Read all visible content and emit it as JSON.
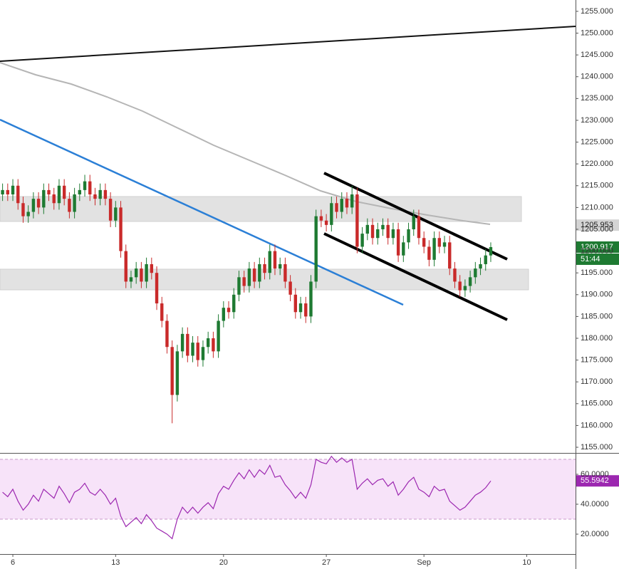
{
  "chart_data": {
    "type": "candlestick",
    "categories": [
      null,
      null,
      "6",
      null,
      null,
      null,
      null,
      null,
      null,
      null,
      null,
      null,
      null,
      null,
      null,
      null,
      null,
      null,
      null,
      null,
      null,
      null,
      "13",
      null,
      null,
      null,
      null,
      null,
      null,
      null,
      null,
      null,
      null,
      null,
      null,
      null,
      null,
      null,
      null,
      null,
      null,
      null,
      null,
      "20",
      null,
      null,
      null,
      null,
      null,
      null,
      null,
      null,
      null,
      null,
      null,
      null,
      null,
      null,
      null,
      null,
      null,
      null,
      null,
      "27",
      null,
      null,
      null,
      null,
      null,
      null,
      null,
      null,
      null,
      null,
      null,
      null,
      null,
      null,
      null,
      null,
      null,
      null,
      "Sep",
      null,
      null,
      null,
      null,
      null,
      null,
      null,
      null,
      null,
      null,
      null,
      null,
      null,
      null,
      null,
      null,
      null,
      null,
      null,
      "10",
      null,
      null,
      null,
      null,
      null,
      null,
      null,
      null,
      null
    ],
    "open": [
      1213,
      1214,
      1213,
      1215,
      1211,
      1208,
      1209,
      1212,
      1210,
      1214,
      1213,
      1211,
      1215,
      1212,
      1209,
      1213,
      1214,
      1216,
      1213,
      1212,
      1214,
      1212,
      1207,
      1210,
      1200,
      1193,
      1194,
      1196,
      1193,
      1197,
      1195,
      1188,
      1184,
      1178,
      1167,
      1177,
      1181,
      1176,
      1179,
      1175,
      1178,
      1180,
      1177,
      1184,
      1187,
      1186,
      1190,
      1194,
      1192,
      1196,
      1193,
      1197,
      1195,
      1200,
      1196,
      1197,
      1193,
      1190,
      1186,
      1188,
      1185,
      1193,
      1208,
      1207,
      1206,
      1211,
      1209,
      1212,
      1210,
      1213,
      1201,
      1204,
      1206,
      1203,
      1205,
      1206,
      1203,
      1205,
      1199,
      1202,
      1205,
      1208,
      1203,
      1201,
      1198,
      1203,
      1201,
      1202,
      1196,
      1193,
      1191,
      1192,
      1194,
      1196,
      1197,
      1199,
      null,
      null,
      null,
      null,
      null,
      null,
      null,
      null,
      null,
      null,
      null,
      null,
      null,
      null,
      null,
      null
    ],
    "high": [
      1215.5,
      1215.5,
      1216.5,
      1216.5,
      1212.5,
      1210.5,
      1213.5,
      1213.5,
      1215.5,
      1215.5,
      1214.5,
      1216.5,
      1216.5,
      1213.5,
      1214.5,
      1215.5,
      1217.5,
      1217.5,
      1214.5,
      1215.5,
      1215.5,
      1213.5,
      1211.5,
      1211.5,
      1201.5,
      1195.5,
      1197.5,
      1197.5,
      1198.5,
      1198.5,
      1196.5,
      1189.5,
      1185.5,
      1179.5,
      1178.5,
      1182.5,
      1182.5,
      1180.5,
      1180.5,
      1179.5,
      1181.5,
      1181.5,
      1185.5,
      1188.5,
      1188.5,
      1191.5,
      1195.5,
      1195.5,
      1197.5,
      1197.5,
      1198.5,
      1198.5,
      1201.5,
      1201.5,
      1198.5,
      1198.5,
      1194.5,
      1191.5,
      1189.5,
      1189.5,
      1194.5,
      1209.5,
      1209.5,
      1208.5,
      1212.5,
      1212.5,
      1213.5,
      1213.5,
      1215,
      1214.5,
      1205.5,
      1207.5,
      1207.5,
      1206.5,
      1207.5,
      1207.5,
      1206.5,
      1206.5,
      1203.5,
      1206.5,
      1209.5,
      1209.5,
      1204.5,
      1202.5,
      1204.5,
      1204.5,
      1203.5,
      1203.5,
      1197.5,
      1194.5,
      1193.5,
      1195.5,
      1197.5,
      1198.5,
      1200.5,
      1202,
      null,
      null,
      null,
      null,
      null,
      null,
      null,
      null,
      null,
      null,
      null,
      null,
      null,
      null,
      null,
      null
    ],
    "low": [
      1211.5,
      1211.5,
      1211.5,
      1209.5,
      1206.5,
      1206.5,
      1207.5,
      1208.5,
      1208.5,
      1211.5,
      1209.5,
      1209.5,
      1210.5,
      1207.5,
      1207.5,
      1211.5,
      1212.5,
      1211.5,
      1210.5,
      1210.5,
      1210.5,
      1205.5,
      1205.5,
      1198.5,
      1191.5,
      1191.5,
      1192.5,
      1191.5,
      1191.5,
      1193.5,
      1186.5,
      1182.5,
      1176.5,
      1160.5,
      1165.5,
      1175.5,
      1174.5,
      1174.5,
      1173.5,
      1173.5,
      1176.5,
      1175.5,
      1175.5,
      1182.5,
      1184.5,
      1184.5,
      1188.5,
      1190.5,
      1190.5,
      1191.5,
      1191.5,
      1193.5,
      1193.5,
      1194.5,
      1194.5,
      1191.5,
      1188.5,
      1184.5,
      1184.5,
      1183.5,
      1183.5,
      1191.5,
      1205.5,
      1204.5,
      1204.5,
      1207.5,
      1207.5,
      1208.5,
      1208.5,
      1199.5,
      1199.5,
      1202.5,
      1201.5,
      1201.5,
      1203.5,
      1201.5,
      1201.5,
      1197.5,
      1197.5,
      1200.5,
      1203.5,
      1201.5,
      1199.5,
      1196.5,
      1196.5,
      1199.5,
      1199.5,
      1194.5,
      1191.5,
      1189.5,
      1189.5,
      1190.5,
      1192.5,
      1194.5,
      1195.5,
      1197.5,
      null,
      null,
      null,
      null,
      null,
      null,
      null,
      null,
      null,
      null,
      null,
      null,
      null,
      null,
      null,
      null
    ],
    "close": [
      1214,
      1213,
      1215,
      1211,
      1208,
      1209,
      1212,
      1210,
      1214,
      1213,
      1211,
      1215,
      1212,
      1209,
      1213,
      1214,
      1216,
      1213,
      1212,
      1214,
      1212,
      1207,
      1210,
      1200,
      1193,
      1194,
      1196,
      1193,
      1197,
      1195,
      1188,
      1184,
      1178,
      1167,
      1177,
      1181,
      1176,
      1179,
      1175,
      1178,
      1180,
      1177,
      1184,
      1187,
      1186,
      1190,
      1194,
      1192,
      1196,
      1193,
      1197,
      1195,
      1200,
      1196,
      1197,
      1193,
      1190,
      1186,
      1188,
      1185,
      1193,
      1208,
      1207,
      1206,
      1211,
      1209,
      1212,
      1210,
      1213,
      1201,
      1204,
      1206,
      1203,
      1205,
      1206,
      1203,
      1205,
      1199,
      1202,
      1205,
      1208,
      1203,
      1201,
      1198,
      1203,
      1201,
      1202,
      1196,
      1193,
      1191,
      1192,
      1194,
      1196,
      1197,
      1199,
      1200.917,
      null,
      null,
      null,
      null,
      null,
      null,
      null,
      null,
      null,
      null,
      null,
      null,
      null,
      null,
      null,
      null
    ],
    "up_color": "#1e7a32",
    "down_color": "#c92a2a",
    "ylim": [
      1153.7,
      1257.6
    ],
    "yticks": [
      {
        "value": 1155,
        "label": "1155.000"
      },
      {
        "value": 1160,
        "label": "1160.000"
      },
      {
        "value": 1165,
        "label": "1165.000"
      },
      {
        "value": 1170,
        "label": "1170.000"
      },
      {
        "value": 1175,
        "label": "1175.000"
      },
      {
        "value": 1180,
        "label": "1180.000"
      },
      {
        "value": 1185,
        "label": "1185.000"
      },
      {
        "value": 1190,
        "label": "1190.000"
      },
      {
        "value": 1195,
        "label": "1195.000"
      },
      {
        "value": 1200,
        "label": "1200.000"
      },
      {
        "value": 1205,
        "label": "1205.000"
      },
      {
        "value": 1210,
        "label": "1210.000"
      },
      {
        "value": 1215,
        "label": "1215.000"
      },
      {
        "value": 1220,
        "label": "1220.000"
      },
      {
        "value": 1225,
        "label": "1225.000"
      },
      {
        "value": 1230,
        "label": "1230.000"
      },
      {
        "value": 1235,
        "label": "1235.000"
      },
      {
        "value": 1240,
        "label": "1240.000"
      },
      {
        "value": 1245,
        "label": "1245.000"
      },
      {
        "value": 1250,
        "label": "1250.000"
      },
      {
        "value": 1255,
        "label": "1255.000"
      }
    ],
    "moving_average_last": 1205.953,
    "countdown": "51:44",
    "rsi": {
      "color": "#9c27b0",
      "values": [
        48,
        45,
        50,
        42,
        36,
        40,
        46,
        42,
        50,
        47,
        44,
        52,
        47,
        41,
        48,
        50,
        54,
        48,
        46,
        50,
        46,
        40,
        44,
        32,
        25,
        28,
        31,
        27,
        33,
        29,
        24,
        22,
        20,
        17,
        30,
        38,
        34,
        38,
        34,
        38,
        41,
        37,
        47,
        52,
        50,
        56,
        61,
        57,
        63,
        58,
        63,
        60,
        66,
        58,
        59,
        53,
        49,
        44,
        48,
        44,
        53,
        70,
        68,
        67,
        72,
        68,
        71,
        68,
        70,
        50,
        54,
        57,
        53,
        56,
        57,
        52,
        55,
        46,
        50,
        55,
        58,
        50,
        48,
        45,
        52,
        49,
        50,
        42,
        39,
        36,
        38,
        42,
        46,
        48,
        51,
        55.5942,
        null,
        null,
        null,
        null,
        null,
        null,
        null,
        null,
        null,
        null,
        null,
        null,
        null,
        null,
        null,
        null
      ],
      "ylim": [
        6.7,
        73.8
      ],
      "yticks": [
        {
          "value": 20,
          "label": "20.0000"
        },
        {
          "value": 40,
          "label": "40.0000"
        },
        {
          "value": 60,
          "label": "60.0000"
        }
      ],
      "band": [
        30,
        70
      ]
    }
  }
}
